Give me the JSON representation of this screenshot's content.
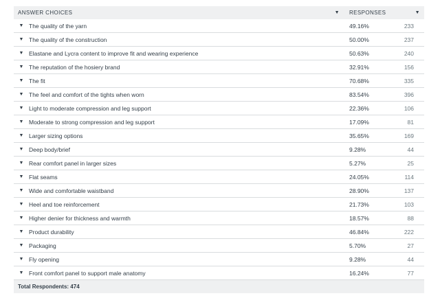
{
  "header": {
    "answer_choices": "ANSWER CHOICES",
    "responses": "RESPONSES"
  },
  "rows": [
    {
      "label": "The quality of the yarn",
      "pct": "49.16%",
      "count": "233"
    },
    {
      "label": "The quality of the construction",
      "pct": "50.00%",
      "count": "237"
    },
    {
      "label": "Elastane and Lycra content to improve fit and wearing experience",
      "pct": "50.63%",
      "count": "240"
    },
    {
      "label": "The reputation of the hosiery brand",
      "pct": "32.91%",
      "count": "156"
    },
    {
      "label": "The fit",
      "pct": "70.68%",
      "count": "335"
    },
    {
      "label": "The feel and comfort of the tights when worn",
      "pct": "83.54%",
      "count": "396"
    },
    {
      "label": "Light to moderate compression and leg support",
      "pct": "22.36%",
      "count": "106"
    },
    {
      "label": "Moderate to strong compression and leg support",
      "pct": "17.09%",
      "count": "81"
    },
    {
      "label": "Larger sizing options",
      "pct": "35.65%",
      "count": "169"
    },
    {
      "label": "Deep body/brief",
      "pct": "9.28%",
      "count": "44"
    },
    {
      "label": "Rear comfort panel in larger sizes",
      "pct": "5.27%",
      "count": "25"
    },
    {
      "label": "Flat seams",
      "pct": "24.05%",
      "count": "114"
    },
    {
      "label": "Wide and comfortable waistband",
      "pct": "28.90%",
      "count": "137"
    },
    {
      "label": "Heel and toe reinforcement",
      "pct": "21.73%",
      "count": "103"
    },
    {
      "label": "Higher denier for thickness and warmth",
      "pct": "18.57%",
      "count": "88"
    },
    {
      "label": "Product durability",
      "pct": "46.84%",
      "count": "222"
    },
    {
      "label": "Packaging",
      "pct": "5.70%",
      "count": "27"
    },
    {
      "label": "Fly opening",
      "pct": "9.28%",
      "count": "44"
    },
    {
      "label": "Front comfort panel to support male anatomy",
      "pct": "16.24%",
      "count": "77"
    }
  ],
  "footer": {
    "total_label": "Total Respondents: 474"
  }
}
